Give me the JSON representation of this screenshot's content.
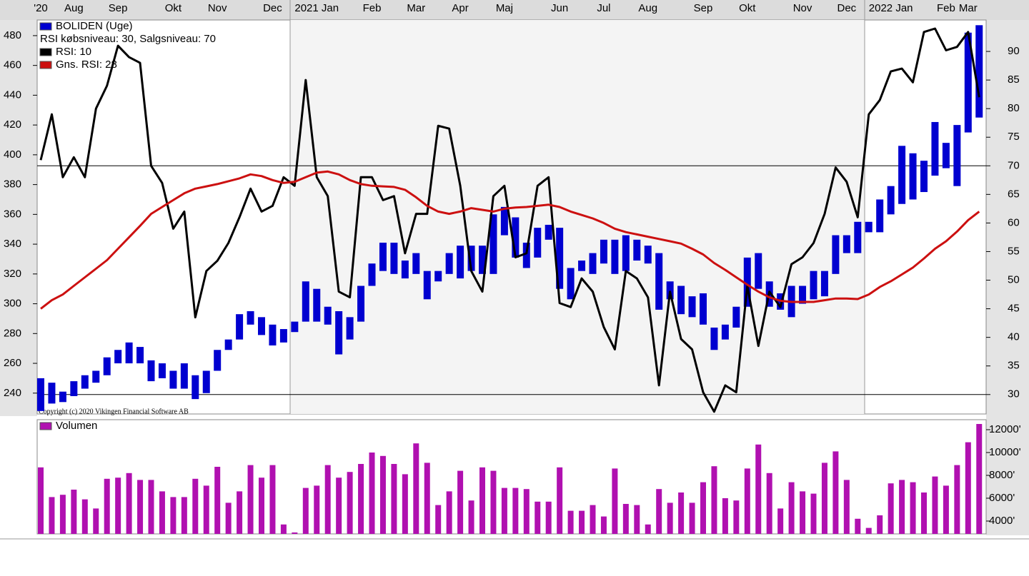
{
  "chart_data": [
    {
      "type": "range-bar",
      "subtitle": "RSI købsniveau: 30, Salgsniveau: 70",
      "annotation": "Copyright (c) 2020 Vikingen Financial Software AB",
      "categories": [
        "'20",
        null,
        null,
        "Aug",
        null,
        null,
        null,
        "Sep",
        null,
        null,
        null,
        null,
        "Okt",
        null,
        null,
        null,
        "Nov",
        null,
        null,
        null,
        null,
        "Dec",
        null,
        null,
        null,
        "2021 Jan",
        null,
        null,
        null,
        null,
        "Feb",
        null,
        null,
        null,
        "Mar",
        null,
        null,
        null,
        "Apr",
        null,
        null,
        null,
        "Maj",
        null,
        null,
        null,
        null,
        "Jun",
        null,
        null,
        null,
        "Jul",
        null,
        null,
        null,
        "Aug",
        null,
        null,
        null,
        null,
        "Sep",
        null,
        null,
        null,
        "Okt",
        null,
        null,
        null,
        null,
        "Nov",
        null,
        null,
        null,
        "Dec",
        null,
        null,
        null,
        "2022 Jan",
        null,
        null,
        null,
        null,
        "Feb",
        null,
        "Mar",
        null
      ],
      "series": [
        {
          "name": "BOLIDEN (Uge)",
          "color": "#0000d0",
          "low": [
            228,
            233,
            234,
            238,
            243,
            247,
            252,
            260,
            260,
            260,
            248,
            250,
            243,
            243,
            236,
            240,
            255,
            269,
            276,
            286,
            279,
            272,
            274,
            281,
            288,
            288,
            286,
            266,
            276,
            288,
            312,
            322,
            320,
            317,
            320,
            303,
            315,
            320,
            317,
            322,
            320,
            320,
            346,
            331,
            324,
            331,
            343,
            310,
            303,
            322,
            320,
            327,
            320,
            322,
            329,
            327,
            296,
            303,
            293,
            291,
            286,
            269,
            276,
            284,
            298,
            310,
            298,
            296,
            291,
            300,
            303,
            305,
            320,
            334,
            334,
            348,
            348,
            360,
            367,
            370,
            375,
            386,
            391,
            379,
            415,
            425
          ],
          "high": [
            250,
            247,
            241,
            248,
            252,
            255,
            264,
            269,
            274,
            271,
            262,
            260,
            255,
            260,
            252,
            255,
            269,
            276,
            293,
            295,
            291,
            286,
            283,
            288,
            315,
            310,
            298,
            295,
            291,
            312,
            327,
            341,
            341,
            329,
            334,
            322,
            322,
            334,
            339,
            339,
            339,
            360,
            365,
            358,
            341,
            351,
            353,
            351,
            324,
            329,
            334,
            343,
            343,
            346,
            343,
            339,
            334,
            315,
            312,
            305,
            307,
            284,
            286,
            298,
            331,
            334,
            315,
            307,
            312,
            312,
            322,
            322,
            346,
            346,
            355,
            355,
            370,
            379,
            406,
            401,
            396,
            422,
            408,
            420,
            482,
            487
          ]
        },
        {
          "name": "RSI: 10",
          "color": "#000000",
          "axis": "y2",
          "values": [
            71,
            79,
            68,
            71.5,
            68,
            80,
            84,
            91,
            89,
            88,
            70,
            67,
            59,
            62,
            43.5,
            51.6,
            53.4,
            56.5,
            61,
            66,
            62,
            63,
            68,
            66.5,
            85,
            68,
            64.7,
            48,
            47,
            68,
            68,
            64,
            64.7,
            54.7,
            61.6,
            61.6,
            77,
            76.5,
            66.5,
            51.6,
            48,
            64.7,
            66.5,
            54,
            54.7,
            66.5,
            68,
            46,
            45.3,
            50.3,
            48,
            41.8,
            37.9,
            51.6,
            50.3,
            47,
            31.6,
            48,
            39.7,
            37.9,
            30.4,
            27,
            31.6,
            30.4,
            49,
            38.5,
            48,
            45.3,
            52.8,
            54,
            56.5,
            61.6,
            69.7,
            67.2,
            61,
            79,
            81.5,
            86.5,
            87,
            84.6,
            93.4,
            94,
            90.2,
            90.8,
            93.4,
            82
          ]
        },
        {
          "name": "Gns. RSI: 28",
          "color": "#cc1010",
          "axis": "y2",
          "values": [
            45,
            46.5,
            47.5,
            49,
            50.5,
            52,
            53.5,
            55.5,
            57.5,
            59.5,
            61.6,
            62.8,
            64,
            65.2,
            66,
            66.4,
            66.8,
            67.3,
            67.8,
            68.5,
            68.2,
            67.5,
            67,
            67.2,
            68,
            68.8,
            69,
            68.5,
            67.5,
            66.8,
            66.5,
            66.4,
            66.3,
            65.8,
            64.5,
            63,
            62,
            61.6,
            62,
            62.6,
            62.3,
            62,
            62.5,
            62.7,
            62.8,
            63,
            63.2,
            62.8,
            62,
            61.4,
            60.8,
            60,
            59,
            58.4,
            58,
            57.6,
            57.2,
            56.8,
            56.4,
            55.5,
            54.5,
            53,
            51.8,
            50.5,
            49.2,
            48,
            47,
            46.4,
            46.2,
            46.2,
            46.2,
            46.5,
            46.8,
            46.8,
            46.7,
            47.5,
            48.8,
            49.8,
            51,
            52.2,
            53.8,
            55.5,
            56.8,
            58.5,
            60.5,
            62
          ]
        }
      ],
      "ylim": [
        226,
        490.5
      ],
      "yticks": [
        240,
        260,
        280,
        300,
        320,
        340,
        360,
        380,
        400,
        420,
        440,
        460,
        480
      ],
      "y2lim": [
        26.6,
        95.5
      ],
      "y2ticks": [
        30,
        35,
        40,
        45,
        50,
        55,
        60,
        65,
        70,
        75,
        80,
        85,
        90
      ],
      "levels": [
        30,
        70
      ]
    },
    {
      "type": "bar",
      "series": [
        {
          "name": "Volumen",
          "color": "#b010b0",
          "values": [
            8700,
            6100,
            6300,
            6750,
            5900,
            5100,
            7700,
            7800,
            8200,
            7600,
            7600,
            6600,
            6100,
            6100,
            7700,
            7100,
            8750,
            5600,
            6600,
            8900,
            7800,
            8900,
            3700,
            3000,
            6900,
            7100,
            8900,
            7800,
            8300,
            9000,
            10000,
            9700,
            9000,
            8100,
            10800,
            9100,
            5400,
            6600,
            8400,
            5800,
            8700,
            8400,
            6900,
            6900,
            6800,
            5700,
            5700,
            8700,
            4900,
            4900,
            5400,
            4400,
            8600,
            5500,
            5400,
            3700,
            6800,
            5600,
            6500,
            5600,
            7400,
            8800,
            6000,
            5800,
            8600,
            10700,
            8200,
            5100,
            7400,
            6600,
            6400,
            9100,
            10100,
            7600,
            4200,
            3400,
            4500,
            7300,
            7600,
            7400,
            6500,
            7900,
            7100,
            8900,
            10900,
            12500
          ]
        }
      ],
      "ylim": [
        2875,
        12875
      ],
      "yticks": [
        {
          "value": 4000,
          "label": "4000'"
        },
        {
          "value": 6000,
          "label": "6000'"
        },
        {
          "value": 8000,
          "label": "8000'"
        },
        {
          "value": 10000,
          "label": "10000'"
        },
        {
          "value": 12000,
          "label": "12000'"
        }
      ]
    }
  ]
}
